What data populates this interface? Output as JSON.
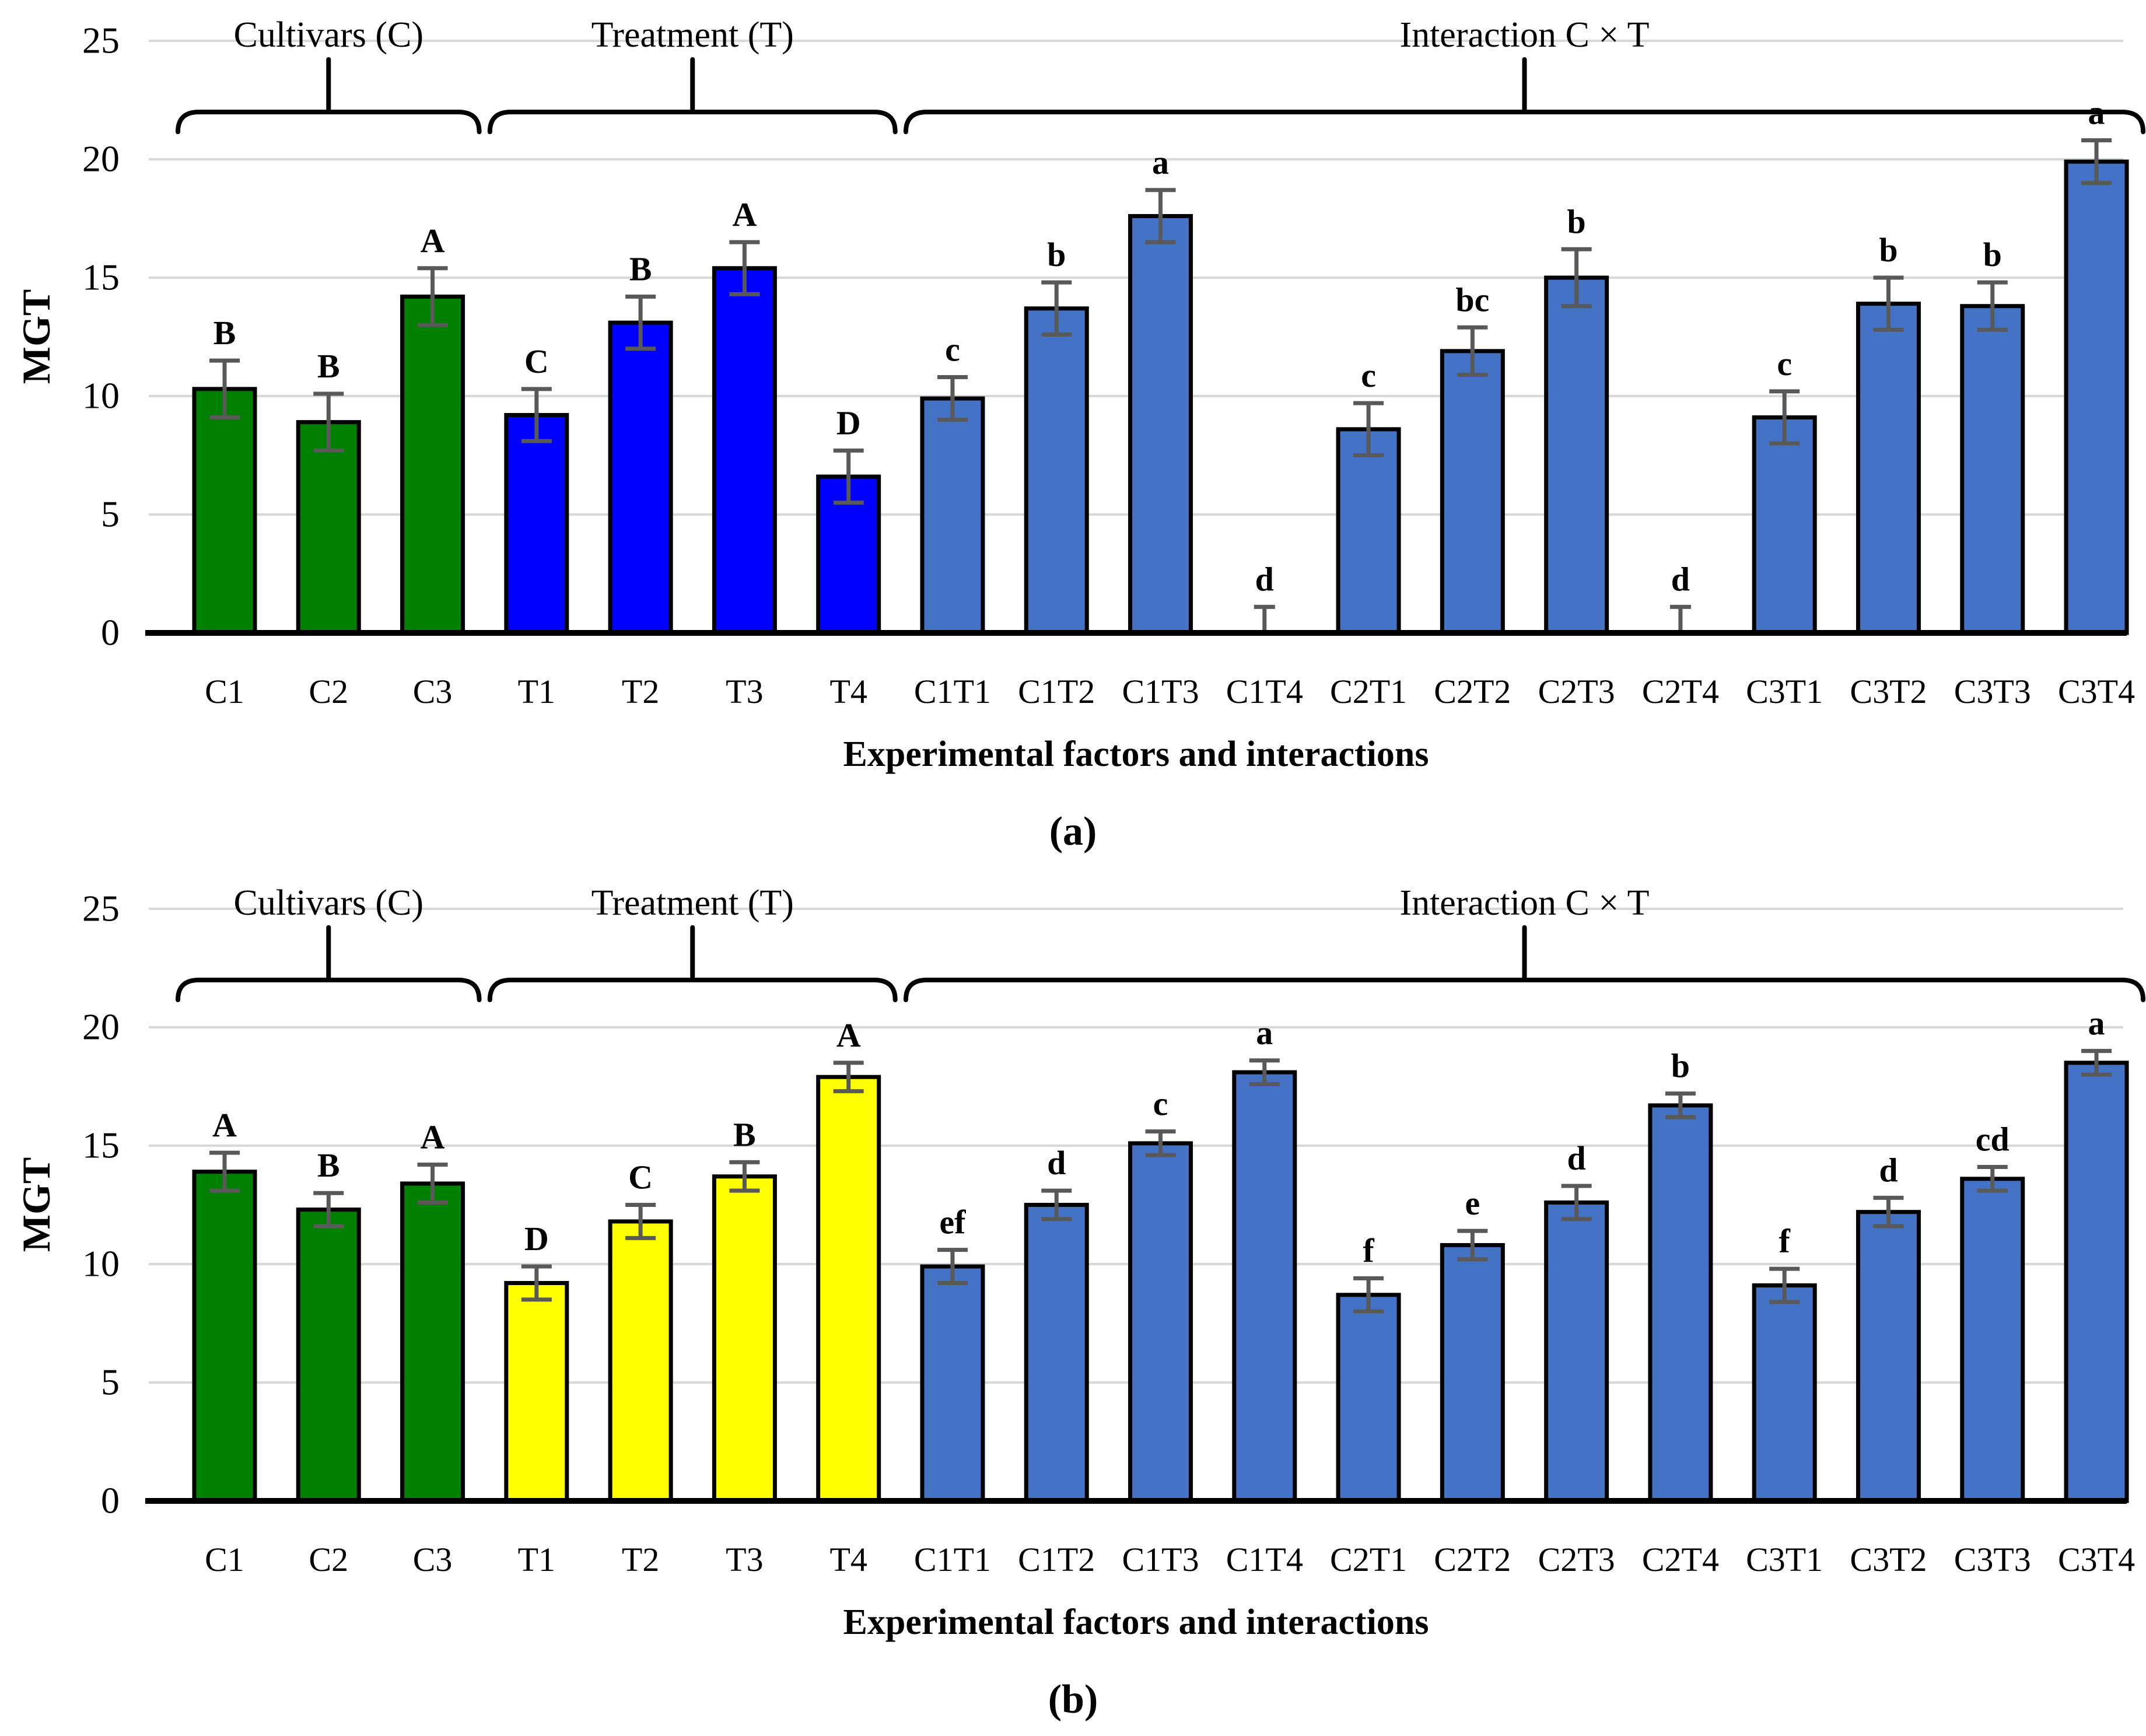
{
  "colors": {
    "background": "#ffffff",
    "grid": "#d9d9d9",
    "axis_line": "#000000",
    "bar_border": "#000000",
    "error_bar": "#595959",
    "cultivars_green": "#008000",
    "treatment_blue": "#0000ff",
    "treatment_yellow": "#ffff00",
    "interaction_blue": "#4472c4"
  },
  "chart_data": [
    {
      "panel": "a",
      "caption": "(a)",
      "type": "bar",
      "title": "",
      "xlabel": "Experimental factors and interactions",
      "ylabel": "MGT",
      "ylim": [
        0,
        25
      ],
      "y_ticks": [
        0,
        5,
        10,
        15,
        20,
        25
      ],
      "grid": true,
      "legend": "none",
      "categories": [
        "C1",
        "C2",
        "C3",
        "T1",
        "T2",
        "T3",
        "T4",
        "C1T1",
        "C1T2",
        "C1T3",
        "C1T4",
        "C2T1",
        "C2T2",
        "C2T3",
        "C2T4",
        "C3T1",
        "C3T2",
        "C3T3",
        "C3T4"
      ],
      "values": [
        10.3,
        8.9,
        14.2,
        9.2,
        13.1,
        15.4,
        6.6,
        9.9,
        13.7,
        17.6,
        0,
        8.6,
        11.9,
        15.0,
        0,
        9.1,
        13.9,
        13.8,
        19.9
      ],
      "errors": [
        1.2,
        1.2,
        1.2,
        1.1,
        1.1,
        1.1,
        1.1,
        0.9,
        1.1,
        1.1,
        1.1,
        1.1,
        1.0,
        1.2,
        1.1,
        1.1,
        1.1,
        1.0,
        0.9
      ],
      "letters": [
        "B",
        "B",
        "A",
        "C",
        "B",
        "A",
        "D",
        "c",
        "b",
        "a",
        "d",
        "c",
        "bc",
        "b",
        "d",
        "c",
        "b",
        "b",
        "a"
      ],
      "groups": [
        {
          "label": "Cultivars (C)",
          "from": 0,
          "to": 2,
          "color_key": "cultivars_green"
        },
        {
          "label": "Treatment (T)",
          "from": 3,
          "to": 6,
          "color_key": "treatment_blue"
        },
        {
          "label": "Interaction C × T",
          "from": 7,
          "to": 18,
          "color_key": "interaction_blue"
        }
      ]
    },
    {
      "panel": "b",
      "caption": "(b)",
      "type": "bar",
      "title": "",
      "xlabel": "Experimental factors and interactions",
      "ylabel": "MGT",
      "ylim": [
        0,
        25
      ],
      "y_ticks": [
        0,
        5,
        10,
        15,
        20,
        25
      ],
      "grid": true,
      "legend": "none",
      "categories": [
        "C1",
        "C2",
        "C3",
        "T1",
        "T2",
        "T3",
        "T4",
        "C1T1",
        "C1T2",
        "C1T3",
        "C1T4",
        "C2T1",
        "C2T2",
        "C2T3",
        "C2T4",
        "C3T1",
        "C3T2",
        "C3T3",
        "C3T4"
      ],
      "values": [
        13.9,
        12.3,
        13.4,
        9.2,
        11.8,
        13.7,
        17.9,
        9.9,
        12.5,
        15.1,
        18.1,
        8.7,
        10.8,
        12.6,
        16.7,
        9.1,
        12.2,
        13.6,
        18.5
      ],
      "errors": [
        0.8,
        0.7,
        0.8,
        0.7,
        0.7,
        0.6,
        0.6,
        0.7,
        0.6,
        0.5,
        0.5,
        0.7,
        0.6,
        0.7,
        0.5,
        0.7,
        0.6,
        0.5,
        0.5
      ],
      "letters": [
        "A",
        "B",
        "A",
        "D",
        "C",
        "B",
        "A",
        "ef",
        "d",
        "c",
        "a",
        "f",
        "e",
        "d",
        "b",
        "f",
        "d",
        "cd",
        "a"
      ],
      "groups": [
        {
          "label": "Cultivars (C)",
          "from": 0,
          "to": 2,
          "color_key": "cultivars_green"
        },
        {
          "label": "Treatment (T)",
          "from": 3,
          "to": 6,
          "color_key": "treatment_yellow"
        },
        {
          "label": "Interaction C × T",
          "from": 7,
          "to": 18,
          "color_key": "interaction_blue"
        }
      ]
    }
  ]
}
